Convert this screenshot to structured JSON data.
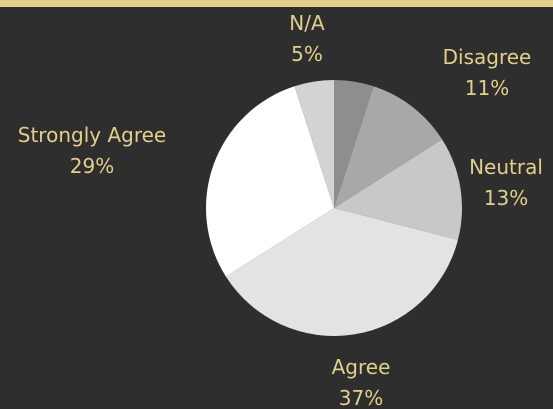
{
  "accent_color": "#e3cf8c",
  "background_color": "#2e2e2e",
  "chart_data": {
    "type": "pie",
    "title": "",
    "start_at": "top",
    "direction": "clockwise",
    "slices": [
      {
        "label": "N/A",
        "value": 5,
        "value_label": "5%",
        "color": "#8e8e8e"
      },
      {
        "label": "Disagree",
        "value": 11,
        "value_label": "11%",
        "color": "#a8a8a8"
      },
      {
        "label": "Neutral",
        "value": 13,
        "value_label": "13%",
        "color": "#c8c8c8"
      },
      {
        "label": "Agree",
        "value": 37,
        "value_label": "37%",
        "color": "#e3e3e3"
      },
      {
        "label": "Strongly Agree",
        "value": 29,
        "value_label": "29%",
        "color": "#ffffff"
      },
      {
        "label": "",
        "value": 5,
        "value_label": "",
        "color": "#d3d3d3"
      }
    ]
  }
}
